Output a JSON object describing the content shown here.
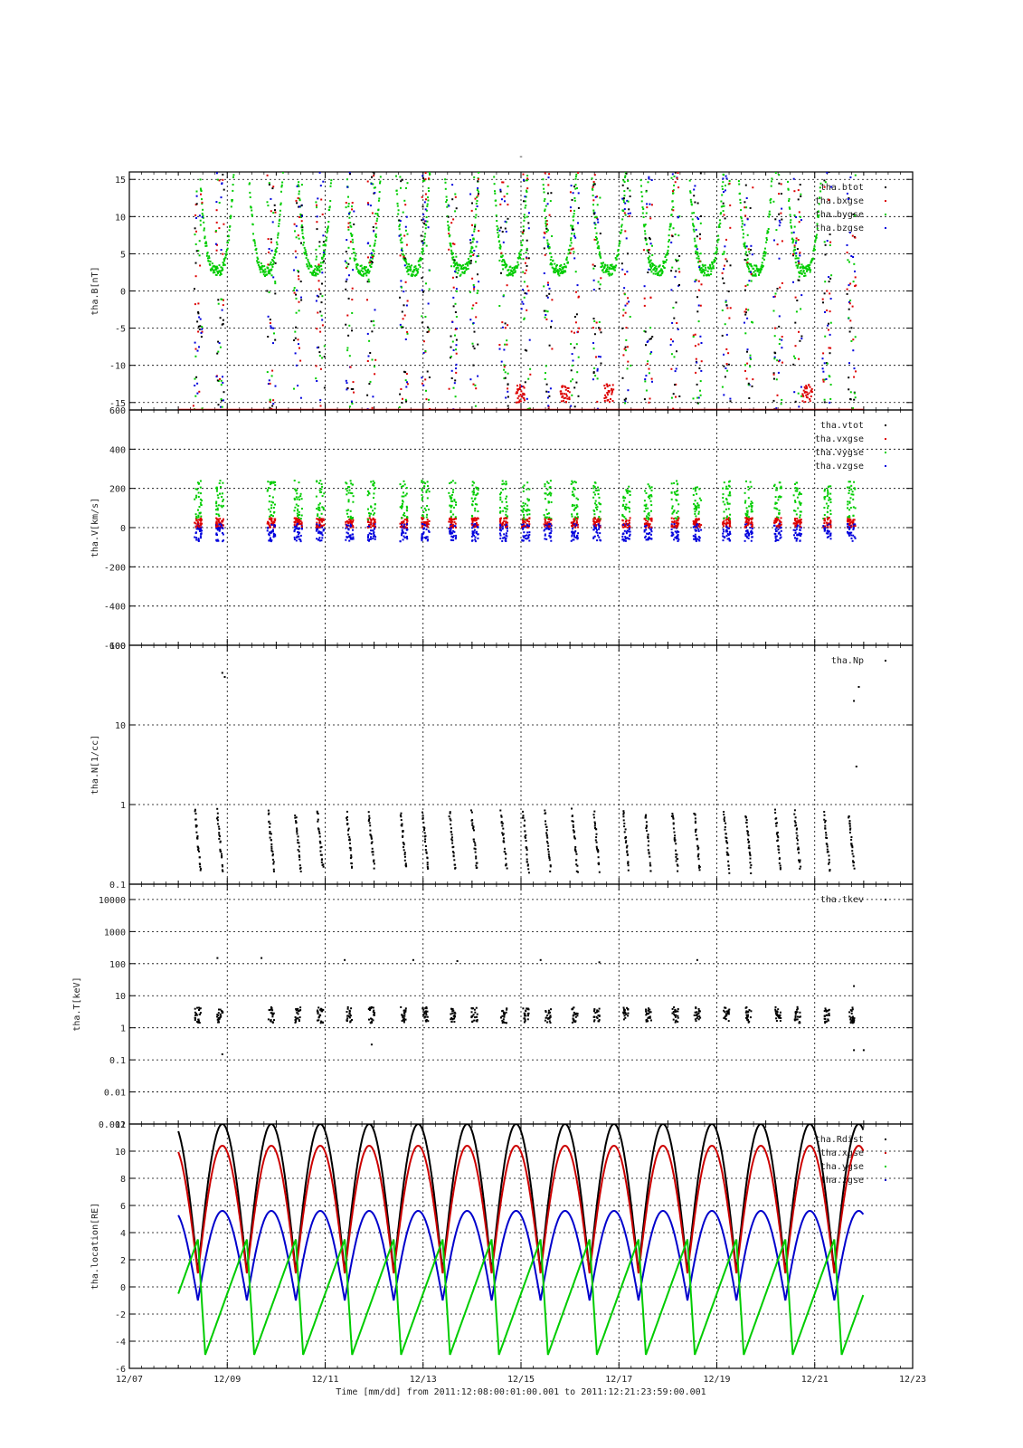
{
  "figure": {
    "title": "-",
    "xlabel": "Time [mm/dd]  from 2011:12:08:00:01:00.001  to  2011:12:21:23:59:00.001",
    "x_ticks": [
      "12/07",
      "12/09",
      "12/11",
      "12/13",
      "12/15",
      "12/17",
      "12/19",
      "12/21",
      "12/23"
    ]
  },
  "chart_data": [
    {
      "type": "scatter",
      "ylabel": "tha.B[nT]",
      "ylim": [
        -16,
        16
      ],
      "yscale": "linear",
      "y_ticks": [
        "15",
        "10",
        "5",
        "0",
        "-5",
        "-10",
        "-15"
      ],
      "x_range_days": [
        7,
        23
      ],
      "grid": true,
      "legend_position": "top-right",
      "series": [
        {
          "name": "tha.btot",
          "color": "#000000"
        },
        {
          "name": "tha.bxgse",
          "color": "#dd0000"
        },
        {
          "name": "tha.bygse",
          "color": "#00cc00"
        },
        {
          "name": "tha.bzgse",
          "color": "#0000dd"
        }
      ]
    },
    {
      "type": "scatter",
      "ylabel": "tha.V[km/s]",
      "ylim": [
        -600,
        600
      ],
      "yscale": "linear",
      "y_ticks": [
        "600",
        "400",
        "200",
        "0",
        "-200",
        "-400",
        "-600"
      ],
      "grid": true,
      "legend_position": "top-right",
      "series": [
        {
          "name": "tha.vtot",
          "color": "#000000"
        },
        {
          "name": "tha.vxgse",
          "color": "#dd0000"
        },
        {
          "name": "tha.vygse",
          "color": "#00cc00"
        },
        {
          "name": "tha.vzgse",
          "color": "#0000dd"
        }
      ]
    },
    {
      "type": "scatter",
      "ylabel": "tha.N[1/cc]",
      "ylim": [
        0.1,
        100
      ],
      "yscale": "log",
      "y_ticks": [
        "100",
        "10",
        "1",
        "0.1"
      ],
      "grid": true,
      "legend_position": "top-right",
      "series": [
        {
          "name": "tha.Np",
          "color": "#000000"
        }
      ]
    },
    {
      "type": "scatter",
      "ylabel": "tha.T[keV]",
      "ylim": [
        0.001,
        30000
      ],
      "yscale": "log",
      "y_ticks": [
        "10000",
        "1000",
        "100",
        "10",
        "1",
        "0.1",
        "0.01",
        "0.001"
      ],
      "grid": true,
      "legend_position": "top-right",
      "series": [
        {
          "name": "tha.tkev",
          "color": "#000000"
        }
      ]
    },
    {
      "type": "line",
      "ylabel": "tha.location[RE]",
      "ylim": [
        -6,
        12
      ],
      "yscale": "linear",
      "y_ticks": [
        "12",
        "10",
        "8",
        "6",
        "4",
        "2",
        "0",
        "-2",
        "-4",
        "-6"
      ],
      "grid": true,
      "legend_position": "top-right",
      "orbit_period_days": 1.0,
      "apogee_days": [
        8.9,
        9.9,
        10.9,
        11.9,
        12.9,
        13.9,
        14.9,
        15.9,
        16.9,
        17.9,
        18.9,
        19.9,
        20.9
      ],
      "series": [
        {
          "name": "tha.Rdist",
          "color": "#000000",
          "apogee": 12.0,
          "perigee": 1.1
        },
        {
          "name": "tha.xgse",
          "color": "#cc0000",
          "apogee": 10.4,
          "perigee": 1.0
        },
        {
          "name": "tha.ygse",
          "color": "#00cc00",
          "max": 3.5,
          "min": -5.0
        },
        {
          "name": "tha.zgse",
          "color": "#0000cc",
          "apogee": 5.6,
          "perigee": -1.0
        }
      ]
    }
  ]
}
